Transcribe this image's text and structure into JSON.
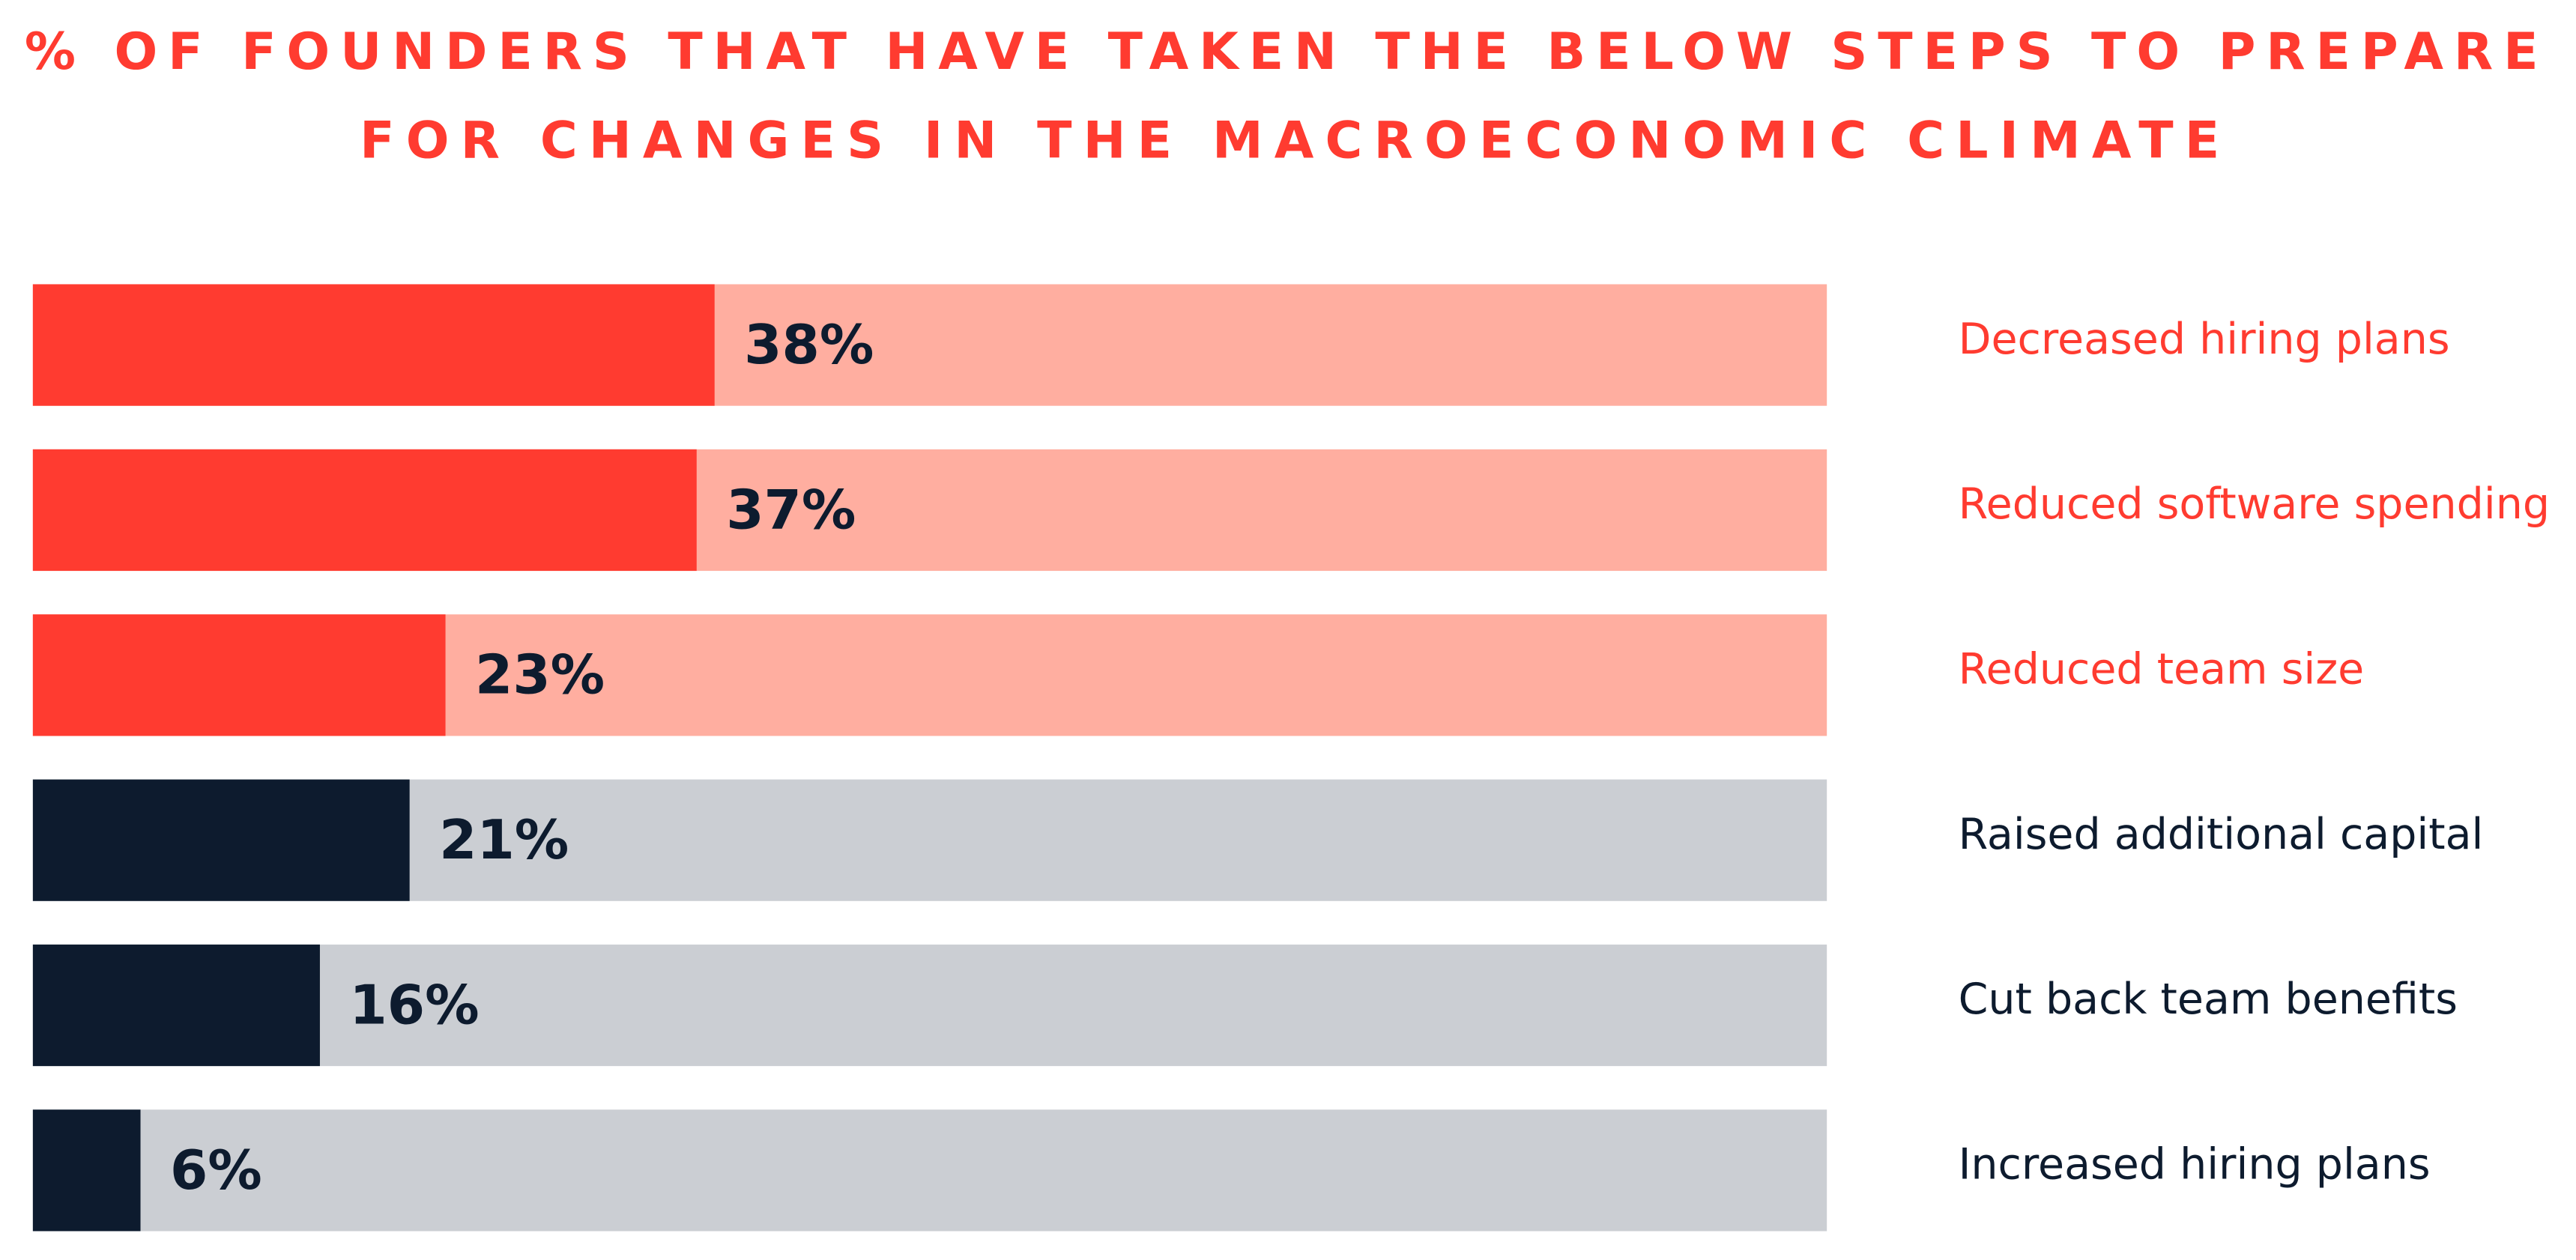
{
  "chart_data": {
    "type": "bar",
    "orientation": "horizontal",
    "title": [
      "% OF FOUNDERS THAT HAVE TAKEN THE BELOW STEPS TO PREPARE",
      "FOR CHANGES IN THE MACROECONOMIC CLIMATE"
    ],
    "title_color": "#ff3b30",
    "categories": [
      "Decreased hiring plans",
      "Reduced software spending",
      "Reduced team size",
      "Raised additional capital",
      "Cut back team benefits",
      "Increased hiring plans"
    ],
    "values": [
      38,
      37,
      23,
      21,
      16,
      6
    ],
    "value_labels": [
      "38%",
      "37%",
      "23%",
      "21%",
      "16%",
      "6%"
    ],
    "colors": [
      "#ff3b30",
      "#ff3b30",
      "#ff3b30",
      "#0d1b2e",
      "#0d1b2e",
      "#0d1b2e"
    ],
    "track_colors": [
      "#ffaea0",
      "#ffaea0",
      "#ffaea0",
      "#cbced3",
      "#cbced3",
      "#cbced3"
    ],
    "value_label_color": "#0d1b2e",
    "xlim": [
      0,
      100
    ]
  }
}
